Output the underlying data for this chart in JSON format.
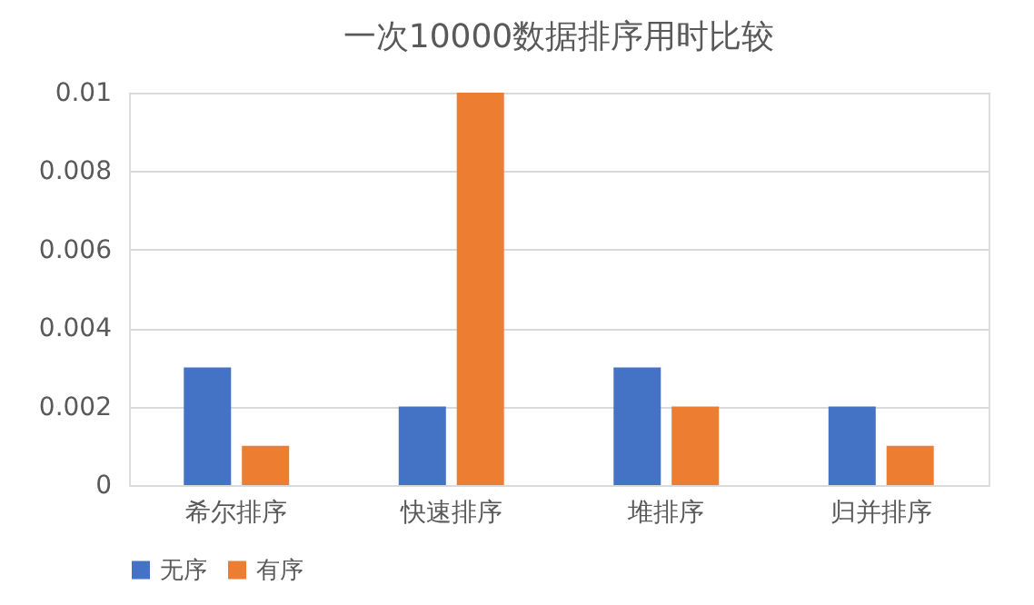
{
  "chart_data": {
    "type": "bar",
    "title": "一次10000数据排序用时比较",
    "categories": [
      "希尔排序",
      "快速排序",
      "堆排序",
      "归并排序"
    ],
    "series": [
      {
        "name": "无序",
        "color": "#4472c4",
        "values": [
          0.003,
          0.002,
          0.003,
          0.002
        ]
      },
      {
        "name": "有序",
        "color": "#ed7d31",
        "values": [
          0.001,
          0.01,
          0.002,
          0.001
        ]
      }
    ],
    "ylim": [
      0,
      0.01
    ],
    "yticks": [
      0,
      0.002,
      0.004,
      0.006,
      0.008,
      0.01
    ],
    "grid": "y",
    "legend": "bottom"
  }
}
